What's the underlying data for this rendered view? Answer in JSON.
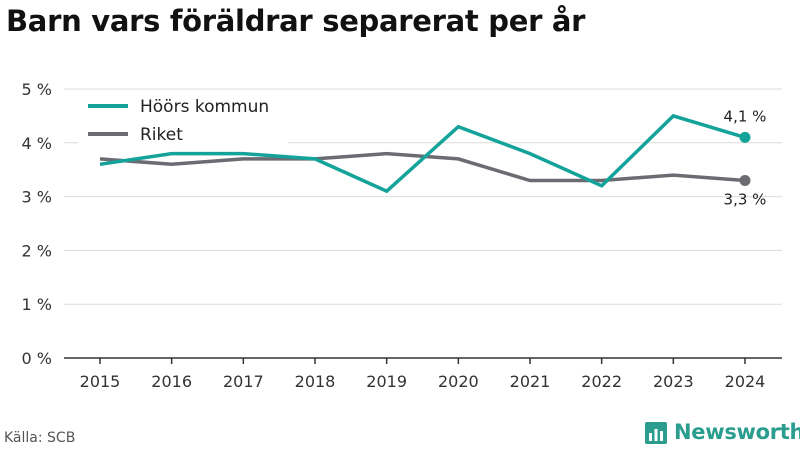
{
  "title": "Barn vars föräldrar separerat per år",
  "source": "Källa: SCB",
  "brand": "Newsworthy",
  "colors": {
    "hoor": "#14a39a",
    "riket": "#6b6b72",
    "grid": "#dcdcdc",
    "brand": "#2a9d8f"
  },
  "chart_data": {
    "type": "line",
    "title": "Barn vars föräldrar separerat per år",
    "x": [
      "2015",
      "2016",
      "2017",
      "2018",
      "2019",
      "2020",
      "2021",
      "2022",
      "2023",
      "2024"
    ],
    "series": [
      {
        "name": "Höörs kommun",
        "values": [
          3.6,
          3.8,
          3.8,
          3.7,
          3.1,
          4.3,
          3.8,
          3.2,
          4.5,
          4.1
        ],
        "end_label": "4,1 %"
      },
      {
        "name": "Riket",
        "values": [
          3.7,
          3.6,
          3.7,
          3.7,
          3.8,
          3.7,
          3.3,
          3.3,
          3.4,
          3.3
        ],
        "end_label": "3,3 %"
      }
    ],
    "yticks": [
      "0 %",
      "1 %",
      "2 %",
      "3 %",
      "4 %",
      "5 %"
    ],
    "ylim": [
      0,
      5
    ],
    "grid": true,
    "legend": "top-left"
  }
}
